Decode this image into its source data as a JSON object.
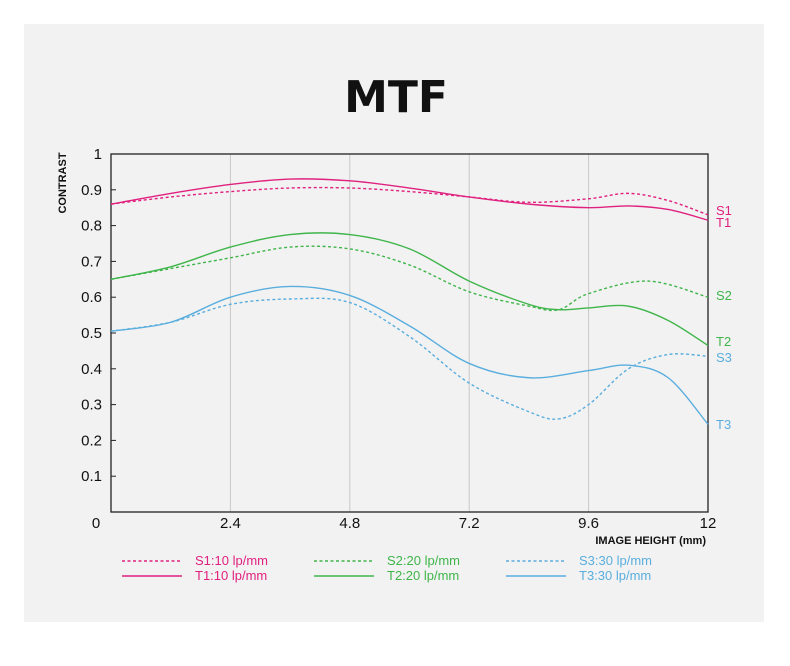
{
  "colors": {
    "s1t1": "#e0217f",
    "s2t2": "#3fb54a",
    "s3t3": "#5aaede",
    "grid": "#c8c8c8",
    "axis": "#222222"
  },
  "chart_data": {
    "type": "line",
    "title": "MTF",
    "xlabel": "IMAGE HEIGHT  (mm)",
    "ylabel": "CONTRAST",
    "xlim": [
      0,
      12
    ],
    "ylim": [
      0,
      1
    ],
    "xticks": [
      "0",
      "2.4",
      "4.8",
      "7.2",
      "9.6",
      "12"
    ],
    "xtick_values": [
      0,
      2.4,
      4.8,
      7.2,
      9.6,
      12
    ],
    "yticks": [
      "0.1",
      "0.2",
      "0.3",
      "0.4",
      "0.5",
      "0.6",
      "0.7",
      "0.8",
      "0.9",
      "1"
    ],
    "ytick_values": [
      0.1,
      0.2,
      0.3,
      0.4,
      0.5,
      0.6,
      0.7,
      0.8,
      0.9,
      1
    ],
    "grid": "vertical",
    "legend_position": "bottom",
    "series": [
      {
        "name": "S1:10 lp/mm",
        "end_label": "S1",
        "color": "#e0217f",
        "dashed": true,
        "x": [
          0,
          1.2,
          2.4,
          3.6,
          4.8,
          6.0,
          7.2,
          8.4,
          9.6,
          10.4,
          11.2,
          12
        ],
        "y": [
          0.86,
          0.88,
          0.895,
          0.905,
          0.905,
          0.895,
          0.88,
          0.865,
          0.875,
          0.89,
          0.87,
          0.83
        ]
      },
      {
        "name": "T1:10 lp/mm",
        "end_label": "T1",
        "color": "#e0217f",
        "dashed": false,
        "x": [
          0,
          1.2,
          2.4,
          3.6,
          4.8,
          6.0,
          7.2,
          8.4,
          9.6,
          10.4,
          11.2,
          12
        ],
        "y": [
          0.86,
          0.89,
          0.915,
          0.93,
          0.925,
          0.905,
          0.88,
          0.86,
          0.85,
          0.855,
          0.845,
          0.815
        ]
      },
      {
        "name": "S2:20 lp/mm",
        "end_label": "S2",
        "color": "#3fb54a",
        "dashed": true,
        "x": [
          0,
          1.2,
          2.4,
          3.6,
          4.8,
          6.0,
          7.2,
          8.4,
          9.0,
          9.6,
          10.8,
          12
        ],
        "y": [
          0.65,
          0.68,
          0.71,
          0.74,
          0.735,
          0.69,
          0.615,
          0.575,
          0.565,
          0.61,
          0.645,
          0.6
        ]
      },
      {
        "name": "T2:20 lp/mm",
        "end_label": "T2",
        "color": "#3fb54a",
        "dashed": false,
        "x": [
          0,
          1.2,
          2.4,
          3.6,
          4.8,
          6.0,
          7.2,
          8.4,
          9.0,
          9.6,
          10.4,
          11.2,
          12
        ],
        "y": [
          0.65,
          0.685,
          0.74,
          0.775,
          0.775,
          0.735,
          0.645,
          0.58,
          0.565,
          0.57,
          0.575,
          0.535,
          0.465
        ]
      },
      {
        "name": "S3:30 lp/mm",
        "end_label": "S3",
        "color": "#5aaede",
        "dashed": true,
        "x": [
          0,
          1.2,
          2.4,
          3.6,
          4.8,
          6.0,
          7.2,
          8.4,
          9.0,
          9.6,
          10.4,
          11.2,
          12
        ],
        "y": [
          0.505,
          0.53,
          0.58,
          0.595,
          0.585,
          0.49,
          0.36,
          0.28,
          0.26,
          0.3,
          0.4,
          0.44,
          0.435
        ]
      },
      {
        "name": "T3:30 lp/mm",
        "end_label": "T3",
        "color": "#5aaede",
        "dashed": false,
        "x": [
          0,
          1.2,
          2.4,
          3.6,
          4.8,
          6.0,
          7.2,
          8.4,
          9.6,
          10.4,
          11.2,
          12
        ],
        "y": [
          0.505,
          0.53,
          0.6,
          0.63,
          0.605,
          0.52,
          0.415,
          0.375,
          0.395,
          0.41,
          0.375,
          0.245
        ]
      }
    ]
  }
}
